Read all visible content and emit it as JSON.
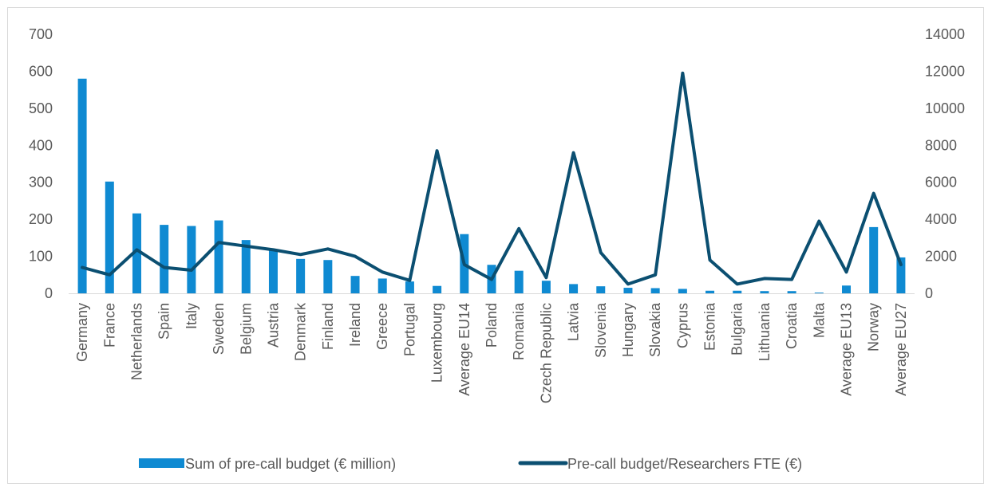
{
  "chart_data": {
    "type": "bar",
    "categories": [
      "Germany",
      "France",
      "Netherlands",
      "Spain",
      "Italy",
      "Sweden",
      "Belgium",
      "Austria",
      "Denmark",
      "Finland",
      "Ireland",
      "Greece",
      "Portugal",
      "Luxembourg",
      "Average EU14",
      "Poland",
      "Romania",
      "Czech Republic",
      "Latvia",
      "Slovenia",
      "Hungary",
      "Slovakia",
      "Cyprus",
      "Estonia",
      "Bulgaria",
      "Lithuania",
      "Croatia",
      "Malta",
      "Average EU13",
      "Norway",
      "Average EU27"
    ],
    "series": [
      {
        "name": "Sum of pre-call budget (€ million)",
        "type": "bar",
        "axis": "left",
        "color": "#0f8ad2",
        "values": [
          580,
          302,
          216,
          185,
          182,
          197,
          144,
          118,
          93,
          90,
          47,
          40,
          32,
          20,
          160,
          77,
          61,
          34,
          25,
          19,
          15,
          14,
          12,
          7,
          7,
          6,
          6,
          2,
          21,
          179,
          97
        ]
      },
      {
        "name": "Pre-call budget/Researchers FTE (€)",
        "type": "line",
        "axis": "right",
        "color": "#0b4f71",
        "values": [
          1400,
          1000,
          2350,
          1400,
          1250,
          2750,
          2550,
          2350,
          2100,
          2400,
          2000,
          1150,
          700,
          7700,
          1550,
          750,
          3500,
          850,
          7600,
          2200,
          500,
          1000,
          11900,
          1800,
          500,
          800,
          750,
          3900,
          1150,
          5400,
          1550
        ]
      }
    ],
    "y_left": {
      "min": 0,
      "max": 700,
      "ticks": [
        "0",
        "100",
        "200",
        "300",
        "400",
        "500",
        "600",
        "700"
      ]
    },
    "y_right": {
      "min": 0,
      "max": 14000,
      "ticks": [
        "0",
        "2000",
        "4000",
        "6000",
        "8000",
        "10000",
        "12000",
        "14000"
      ]
    },
    "grid": false,
    "legend_position": "bottom"
  }
}
